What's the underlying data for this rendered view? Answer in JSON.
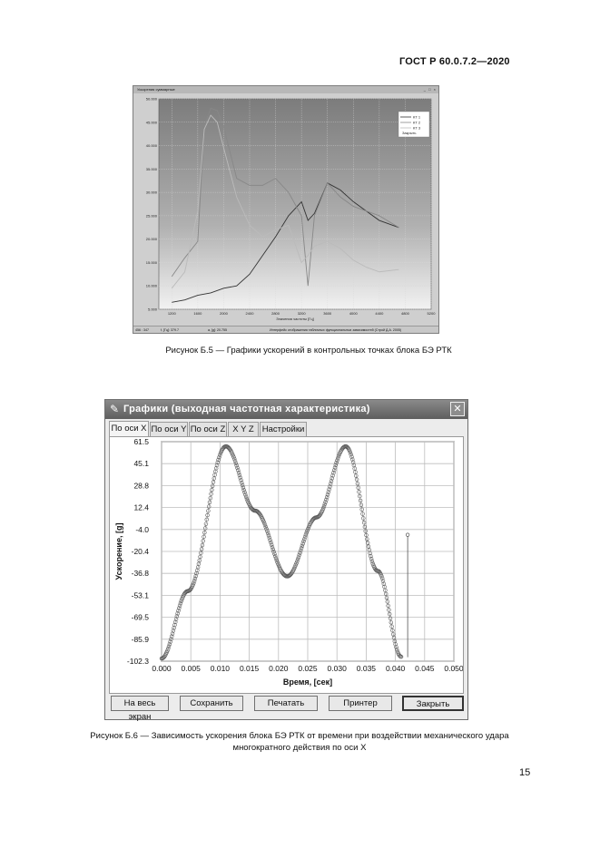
{
  "doc": {
    "header": "ГОСТ Р 60.0.7.2—2020",
    "page_number": "15",
    "caption_b5": "Рисунок Б.5 — Графики ускорений в контрольных точках блока БЭ РТК",
    "caption_b6_line1": "Рисунок Б.6 — Зависимость ускорения блока БЭ РТК от времени при воздействии механического удара",
    "caption_b6_line2": "многократного действия по оси X"
  },
  "figure_b5": {
    "window_title": "Ускорения суммарные",
    "window_buttons": "_ □ ×",
    "legend": [
      "КТ 1",
      "КТ 2",
      "КТ 3"
    ],
    "close_label": "Закрыть",
    "x_axis_label": "Значения частоты [Гц]",
    "status": [
      "456 : 347",
      "f, [Гц]: 379.7",
      "a, [g]: 20.755",
      "Интерфейс отображения табличных функциональных зависимостей (Строй Д.А. 2005)"
    ]
  },
  "figure_b6": {
    "window_title": "Графики (выходная частотная характеристика)",
    "close_icon_glyph": "✕",
    "tabs": [
      "По оси X",
      "По оси Y",
      "По оси Z",
      "X Y Z",
      "Настройки"
    ],
    "buttons": [
      "На весь экран",
      "Сохранить",
      "Печатать",
      "Принтер",
      "Закрыть"
    ]
  },
  "chart_data": [
    {
      "type": "line",
      "title": "",
      "xlabel": "Значения частоты [Гц]",
      "ylabel": "",
      "xlim": [
        1000,
        5200
      ],
      "ylim": [
        5000,
        50000
      ],
      "x_ticks": [
        "1200",
        "1600",
        "2000",
        "2400",
        "2800",
        "3200",
        "3600",
        "4000",
        "4400",
        "4800",
        "5200"
      ],
      "y_ticks": [
        "5.000",
        "10.000",
        "15.000",
        "20.000",
        "25.000",
        "30.000",
        "35.000",
        "40.000",
        "45.000",
        "50.000"
      ],
      "legend_position": "top-right",
      "grid": true,
      "series": [
        {
          "name": "КТ 1",
          "color": "#333333",
          "x": [
            1200,
            1400,
            1600,
            1800,
            2000,
            2200,
            2400,
            2600,
            2800,
            3000,
            3200,
            3300,
            3400,
            3600,
            3800,
            4000,
            4200,
            4400,
            4700
          ],
          "y": [
            6500,
            7000,
            8000,
            8500,
            9500,
            10000,
            12500,
            16500,
            20500,
            25000,
            28000,
            24000,
            25500,
            32000,
            30500,
            28000,
            26000,
            24000,
            22500
          ]
        },
        {
          "name": "КТ 2",
          "color": "#888888",
          "x": [
            1200,
            1400,
            1600,
            1700,
            1800,
            1900,
            2000,
            2200,
            2400,
            2600,
            2800,
            3000,
            3200,
            3300,
            3400,
            3600,
            3800,
            4000,
            4200,
            4400,
            4700
          ],
          "y": [
            12000,
            16000,
            19500,
            44000,
            48000,
            47500,
            44000,
            33000,
            31500,
            31500,
            33000,
            30000,
            25000,
            10000,
            25000,
            32000,
            29000,
            27000,
            26000,
            25000,
            22500
          ]
        },
        {
          "name": "КТ 3",
          "color": "#bbbbbb",
          "x": [
            1200,
            1400,
            1600,
            1700,
            1800,
            1900,
            2000,
            2200,
            2400,
            2600,
            2800,
            3000,
            3200,
            3300,
            3400,
            3600,
            3800,
            4000,
            4200,
            4400,
            4700
          ],
          "y": [
            9500,
            13000,
            26000,
            43500,
            46500,
            45000,
            39500,
            29000,
            23000,
            20500,
            22000,
            23000,
            15000,
            16500,
            18500,
            19500,
            18000,
            15500,
            14000,
            13000,
            13500
          ]
        }
      ]
    },
    {
      "type": "scatter",
      "title": "",
      "xlabel": "Время, [сек]",
      "ylabel": "Ускорение, [g]",
      "xlim": [
        0.0,
        0.05
      ],
      "ylim": [
        -102.3,
        61.5
      ],
      "x_ticks": [
        "0.000",
        "0.005",
        "0.010",
        "0.015",
        "0.020",
        "0.025",
        "0.030",
        "0.035",
        "0.040",
        "0.045",
        "0.050"
      ],
      "y_ticks": [
        "61.5",
        "45.1",
        "28.8",
        "12.4",
        "-4.0",
        "-20.4",
        "-36.8",
        "-53.1",
        "-69.5",
        "-85.9",
        "-102.3"
      ],
      "grid": true,
      "series": [
        {
          "name": "",
          "color": "#555555",
          "x_start": 0.0,
          "x_end": 0.041,
          "samples": 330,
          "min_value": -102.3,
          "max_value": 61.5,
          "peaks": [
            {
              "t": 0.011,
              "y": 58.0
            },
            {
              "t": 0.0315,
              "y": 58.0
            }
          ],
          "trough": {
            "t": 0.0215,
            "y": -39.0
          },
          "end_marker": {
            "t": 0.0421,
            "y": -8.0
          }
        }
      ]
    }
  ]
}
